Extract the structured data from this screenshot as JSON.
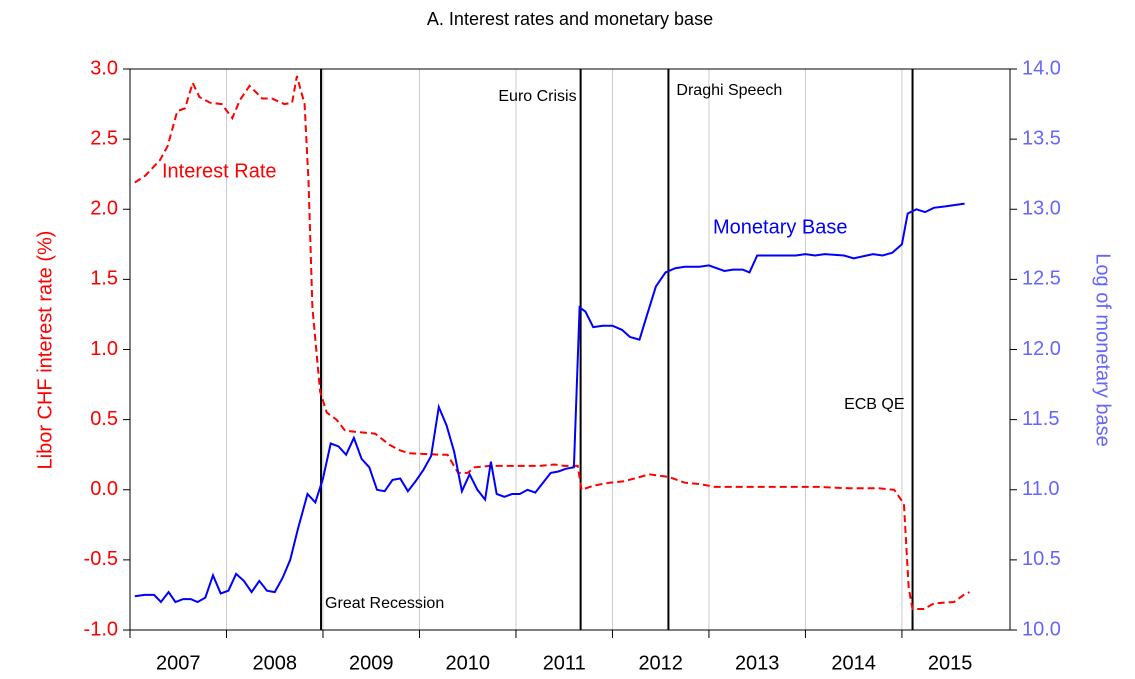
{
  "chart_data": {
    "type": "line",
    "title": "A. Interest rates and monetary base",
    "y_label": "Libor CHF interest rate (%)",
    "y2_label": "Log of monetary base",
    "xlim": [
      2007,
      2016.12
    ],
    "xticks": [
      {
        "value": 2007,
        "label": "2007"
      },
      {
        "value": 2008,
        "label": "2008"
      },
      {
        "value": 2009,
        "label": "2009"
      },
      {
        "value": 2010,
        "label": "2010"
      },
      {
        "value": 2011,
        "label": "2011"
      },
      {
        "value": 2012,
        "label": "2012"
      },
      {
        "value": 2013,
        "label": "2013"
      },
      {
        "value": 2014,
        "label": "2014"
      },
      {
        "value": 2015,
        "label": "2015"
      }
    ],
    "ylim": [
      -1,
      3
    ],
    "yticks": [
      {
        "value": -1,
        "label": "-1.0"
      },
      -0.5,
      {
        "value": 0,
        "label": "0.0"
      },
      0.5,
      {
        "value": 1,
        "label": "1.0"
      },
      1.5,
      {
        "value": 2,
        "label": "2.0"
      },
      2.5,
      {
        "value": 3,
        "label": "3.0"
      }
    ],
    "y2lim": [
      10,
      14
    ],
    "y2ticks": [
      {
        "value": 10,
        "label": "10.0"
      },
      10.5,
      {
        "value": 11,
        "label": "11.0"
      },
      11.5,
      {
        "value": 12,
        "label": "12.0"
      },
      12.5,
      {
        "value": 13,
        "label": "13.0"
      },
      13.5,
      {
        "value": 14,
        "label": "14.0"
      }
    ],
    "grid": true,
    "events": [
      {
        "label": "Great Recession",
        "x": 2008.98
      },
      {
        "label": "Euro Crisis",
        "x": 2011.67
      },
      {
        "label": "Draghi Speech",
        "x": 2012.58
      },
      {
        "label": "ECB QE",
        "x": 2015.11
      }
    ],
    "series": [
      {
        "name": "Interest Rate",
        "color": "#ff0000",
        "axis": "y",
        "dashed": true,
        "x": [
          2007.05,
          2007.16,
          2007.31,
          2007.39,
          2007.49,
          2007.57,
          2007.65,
          2007.72,
          2007.83,
          2007.95,
          2008.06,
          2008.14,
          2008.24,
          2008.37,
          2008.47,
          2008.6,
          2008.68,
          2008.73,
          2008.81,
          2008.85,
          2008.89,
          2008.97,
          2009.04,
          2009.14,
          2009.23,
          2009.38,
          2009.54,
          2009.69,
          2009.8,
          2009.9,
          2010.21,
          2010.29,
          2010.4,
          2010.5,
          2010.57,
          2010.73,
          2010.93,
          2011.24,
          2011.4,
          2011.5,
          2011.64,
          2011.68,
          2011.81,
          2011.97,
          2012.12,
          2012.28,
          2012.38,
          2012.59,
          2012.75,
          2012.91,
          2013.06,
          2013.32,
          2013.83,
          2014.14,
          2014.45,
          2014.76,
          2014.92,
          2015.02,
          2015.07,
          2015.11,
          2015.23,
          2015.33,
          2015.54,
          2015.64,
          2015.7
        ],
        "values": [
          2.19,
          2.24,
          2.35,
          2.45,
          2.7,
          2.72,
          2.9,
          2.8,
          2.76,
          2.75,
          2.65,
          2.78,
          2.88,
          2.79,
          2.79,
          2.75,
          2.76,
          2.95,
          2.75,
          2.2,
          1.3,
          0.7,
          0.55,
          0.5,
          0.42,
          0.41,
          0.4,
          0.32,
          0.28,
          0.26,
          0.25,
          0.25,
          0.12,
          0.12,
          0.16,
          0.17,
          0.17,
          0.17,
          0.18,
          0.17,
          0.17,
          0.0,
          0.03,
          0.05,
          0.06,
          0.09,
          0.11,
          0.09,
          0.05,
          0.04,
          0.02,
          0.02,
          0.02,
          0.02,
          0.01,
          0.01,
          0.0,
          -0.1,
          -0.7,
          -0.85,
          -0.85,
          -0.81,
          -0.8,
          -0.75,
          -0.73
        ]
      },
      {
        "name": "Monetary Base",
        "color": "#0000ff",
        "axis": "y2",
        "dashed": false,
        "x": [
          2007.05,
          2007.15,
          2007.25,
          2007.32,
          2007.4,
          2007.47,
          2007.55,
          2007.63,
          2007.7,
          2007.78,
          2007.86,
          2007.94,
          2008.02,
          2008.1,
          2008.18,
          2008.26,
          2008.34,
          2008.42,
          2008.5,
          2008.58,
          2008.66,
          2008.74,
          2008.84,
          2008.92,
          2009.0,
          2009.08,
          2009.16,
          2009.24,
          2009.32,
          2009.4,
          2009.48,
          2009.56,
          2009.64,
          2009.72,
          2009.8,
          2009.88,
          2009.96,
          2010.04,
          2010.12,
          2010.2,
          2010.28,
          2010.36,
          2010.44,
          2010.52,
          2010.6,
          2010.68,
          2010.74,
          2010.8,
          2010.88,
          2010.96,
          2011.04,
          2011.12,
          2011.2,
          2011.28,
          2011.36,
          2011.44,
          2011.52,
          2011.6,
          2011.66,
          2011.72,
          2011.8,
          2011.9,
          2012.0,
          2012.1,
          2012.18,
          2012.28,
          2012.36,
          2012.45,
          2012.55,
          2012.65,
          2012.75,
          2012.9,
          2013.0,
          2013.08,
          2013.16,
          2013.25,
          2013.35,
          2013.42,
          2013.5,
          2013.7,
          2013.9,
          2014.0,
          2014.1,
          2014.2,
          2014.4,
          2014.5,
          2014.7,
          2014.8,
          2014.9,
          2015.0,
          2015.06,
          2015.15,
          2015.24,
          2015.33,
          2015.45,
          2015.55,
          2015.65
        ],
        "values": [
          10.24,
          10.25,
          10.25,
          10.2,
          10.27,
          10.2,
          10.22,
          10.22,
          10.2,
          10.23,
          10.39,
          10.26,
          10.28,
          10.4,
          10.35,
          10.27,
          10.35,
          10.28,
          10.27,
          10.37,
          10.5,
          10.72,
          10.97,
          10.91,
          11.08,
          11.33,
          11.31,
          11.25,
          11.37,
          11.22,
          11.16,
          11.0,
          10.99,
          11.07,
          11.08,
          10.99,
          11.06,
          11.14,
          11.24,
          11.59,
          11.46,
          11.27,
          10.99,
          11.11,
          11.0,
          10.93,
          11.2,
          10.97,
          10.95,
          10.97,
          10.97,
          11.0,
          10.98,
          11.05,
          11.12,
          11.13,
          11.15,
          11.16,
          12.3,
          12.27,
          12.16,
          12.17,
          12.17,
          12.14,
          12.09,
          12.07,
          12.25,
          12.45,
          12.55,
          12.58,
          12.59,
          12.59,
          12.6,
          12.58,
          12.56,
          12.57,
          12.57,
          12.55,
          12.67,
          12.67,
          12.67,
          12.68,
          12.67,
          12.68,
          12.67,
          12.65,
          12.68,
          12.67,
          12.69,
          12.75,
          12.97,
          13.0,
          12.98,
          13.01,
          13.02,
          13.03,
          13.04
        ]
      }
    ]
  }
}
